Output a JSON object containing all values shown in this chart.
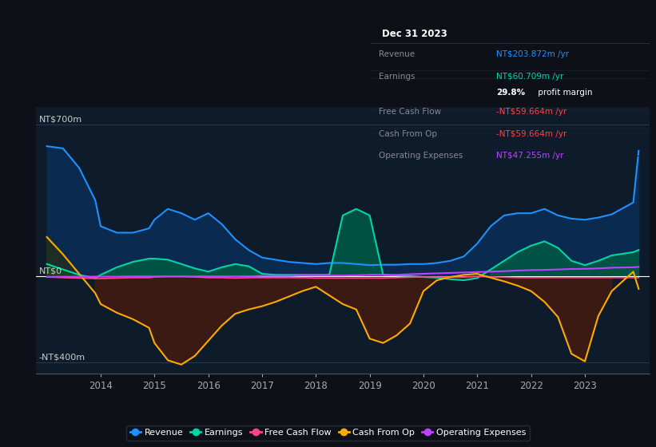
{
  "bg_color": "#0d1117",
  "plot_bg_color": "#0d1b2a",
  "revenue_color": "#1e90ff",
  "earnings_color": "#00d4aa",
  "fcf_color": "#ff4488",
  "cashfromop_color": "#ffaa00",
  "opex_color": "#bb44ff",
  "revenue_fill_color": "#0a2a50",
  "earnings_fill_pos_color": "#005544",
  "earnings_fill_neg_color": "#5a1a1a",
  "cashfromop_fill_neg_color": "#4a1a0a",
  "legend_labels": [
    "Revenue",
    "Earnings",
    "Free Cash Flow",
    "Cash From Op",
    "Operating Expenses"
  ],
  "legend_colors": [
    "#1e90ff",
    "#00d4aa",
    "#ff4488",
    "#ffaa00",
    "#bb44ff"
  ],
  "info_box": {
    "title": "Dec 31 2023",
    "rows": [
      {
        "label": "Revenue",
        "value": "NT$203.872m /yr",
        "value_color": "#1e90ff"
      },
      {
        "label": "Earnings",
        "value": "NT$60.709m /yr",
        "value_color": "#00d4aa"
      },
      {
        "label": "",
        "value": "29.8% profit margin",
        "value_color": "#ffffff"
      },
      {
        "label": "Free Cash Flow",
        "value": "-NT$59.664m /yr",
        "value_color": "#ff4444"
      },
      {
        "label": "Cash From Op",
        "value": "-NT$59.664m /yr",
        "value_color": "#ff4444"
      },
      {
        "label": "Operating Expenses",
        "value": "NT$47.255m /yr",
        "value_color": "#bb44ff"
      }
    ]
  },
  "x": [
    2013.0,
    2013.3,
    2013.6,
    2013.9,
    2014.0,
    2014.3,
    2014.6,
    2014.9,
    2015.0,
    2015.25,
    2015.5,
    2015.75,
    2016.0,
    2016.25,
    2016.5,
    2016.75,
    2017.0,
    2017.25,
    2017.5,
    2017.75,
    2018.0,
    2018.25,
    2018.5,
    2018.75,
    2019.0,
    2019.25,
    2019.5,
    2019.75,
    2020.0,
    2020.25,
    2020.5,
    2020.75,
    2021.0,
    2021.25,
    2021.5,
    2021.75,
    2022.0,
    2022.25,
    2022.5,
    2022.75,
    2023.0,
    2023.25,
    2023.5,
    2023.9,
    2024.0
  ],
  "revenue": [
    600,
    590,
    500,
    350,
    230,
    200,
    200,
    220,
    260,
    310,
    290,
    260,
    290,
    240,
    170,
    120,
    85,
    75,
    65,
    60,
    55,
    60,
    60,
    55,
    50,
    52,
    52,
    55,
    55,
    60,
    70,
    90,
    150,
    230,
    280,
    290,
    290,
    310,
    280,
    265,
    260,
    270,
    285,
    340,
    580
  ],
  "earnings": [
    55,
    30,
    5,
    -10,
    5,
    40,
    65,
    80,
    80,
    75,
    55,
    35,
    20,
    40,
    55,
    45,
    10,
    5,
    5,
    5,
    5,
    5,
    280,
    310,
    280,
    5,
    2,
    0,
    -5,
    -8,
    -15,
    -20,
    -10,
    30,
    70,
    110,
    140,
    160,
    130,
    70,
    50,
    70,
    95,
    110,
    120
  ],
  "fcf": [
    -5,
    -8,
    -10,
    -12,
    -12,
    -10,
    -8,
    -8,
    -5,
    -3,
    -3,
    -5,
    -8,
    -8,
    -10,
    -8,
    -8,
    -8,
    -8,
    -8,
    -10,
    -10,
    -10,
    -10,
    -10,
    -10,
    -8,
    -6,
    -5,
    -5,
    -5,
    -5,
    -2,
    -4,
    -6,
    -8,
    -8,
    -8,
    -8,
    -8,
    -8,
    -8,
    -8,
    -8,
    -8
  ],
  "cashfromop": [
    180,
    100,
    10,
    -80,
    -130,
    -170,
    -200,
    -240,
    -310,
    -390,
    -410,
    -370,
    -300,
    -230,
    -175,
    -155,
    -140,
    -120,
    -95,
    -70,
    -50,
    -90,
    -130,
    -155,
    -290,
    -310,
    -275,
    -220,
    -70,
    -20,
    -5,
    5,
    10,
    -8,
    -25,
    -45,
    -70,
    -120,
    -190,
    -360,
    -395,
    -185,
    -70,
    20,
    -60
  ],
  "opex": [
    -5,
    -4,
    -4,
    -3,
    -3,
    -3,
    -2,
    -2,
    -2,
    -2,
    -2,
    -2,
    -2,
    -2,
    -2,
    -2,
    0,
    0,
    0,
    2,
    2,
    2,
    2,
    3,
    5,
    5,
    5,
    8,
    10,
    12,
    14,
    16,
    18,
    20,
    22,
    25,
    27,
    28,
    30,
    32,
    33,
    35,
    38,
    40,
    42
  ],
  "ylim": [
    -450,
    780
  ],
  "xlim": [
    2012.8,
    2024.2
  ],
  "yticks_labels": [
    [
      "NT$700m",
      700
    ],
    [
      "NT$0",
      0
    ],
    [
      "-NT$400m",
      -400
    ]
  ],
  "xticks": [
    2014,
    2015,
    2016,
    2017,
    2018,
    2019,
    2020,
    2021,
    2022,
    2023
  ]
}
